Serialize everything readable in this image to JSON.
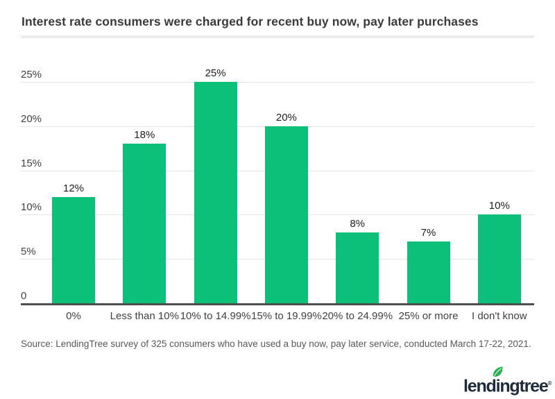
{
  "page": {
    "source": "Source: LendingTree survey of 325 consumers who have used a buy now, pay later service, conducted March 17-22, 2021.",
    "logo": {
      "brand": "lendingtree",
      "reg": "®",
      "navy": "#1d2b3b",
      "leaf_green": "#27b14e"
    }
  },
  "chart_data": {
    "type": "bar",
    "title": "Interest rate consumers were charged for recent buy now, pay later purchases",
    "categories": [
      "0%",
      "Less than 10%",
      "10% to 14.99%",
      "15% to 19.99%",
      "20% to 24.99%",
      "25% or more",
      "I don't know"
    ],
    "values": [
      12,
      18,
      25,
      20,
      8,
      7,
      10
    ],
    "value_labels": [
      "12%",
      "18%",
      "25%",
      "20%",
      "8%",
      "7%",
      "10%"
    ],
    "xlabel": "",
    "ylabel": "",
    "y_ticks": [
      "0",
      "5%",
      "10%",
      "15%",
      "20%",
      "25%"
    ],
    "ylim": [
      0,
      25
    ],
    "grid": true,
    "legend": "none",
    "bar_color": "#0cc07a",
    "axis_color": "#4d4d4d",
    "gridline_color": "#e4e4e4"
  }
}
